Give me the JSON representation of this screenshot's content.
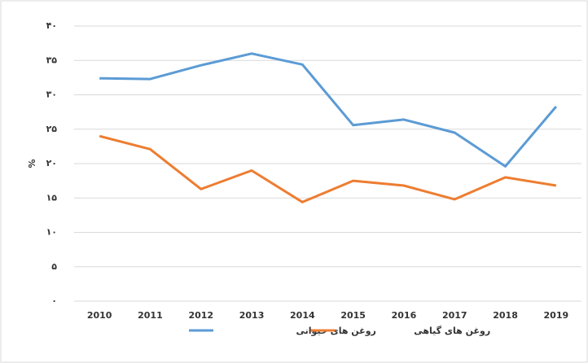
{
  "chart_data": {
    "type": "line",
    "y_label": "%",
    "categories": [
      "2010",
      "2011",
      "2012",
      "2013",
      "2014",
      "2015",
      "2016",
      "2017",
      "2018",
      "2019"
    ],
    "series": [
      {
        "name": "روغن های حیوانی",
        "color": "#5b9bd5",
        "values": [
          32.4,
          32.3,
          34.3,
          36,
          34.4,
          25.6,
          26.4,
          24.5,
          19.6,
          28.3
        ]
      },
      {
        "name": "روغن های گیاهی",
        "color": "#ed7d31",
        "values": [
          24,
          22.1,
          16.3,
          19,
          14.4,
          17.5,
          16.8,
          14.8,
          18,
          16.8
        ]
      }
    ],
    "ylim": [
      0,
      40
    ],
    "yticks": [
      {
        "value": 0,
        "label": "۰"
      },
      {
        "value": 5,
        "label": "۵"
      },
      {
        "value": 10,
        "label": "۱۰"
      },
      {
        "value": 15,
        "label": "۱۵"
      },
      {
        "value": 20,
        "label": "۲۰"
      },
      {
        "value": 25,
        "label": "۲۵"
      },
      {
        "value": 30,
        "label": "۳۰"
      },
      {
        "value": 35,
        "label": "۳۵"
      },
      {
        "value": 40,
        "label": "۴۰"
      }
    ],
    "grid": true
  }
}
